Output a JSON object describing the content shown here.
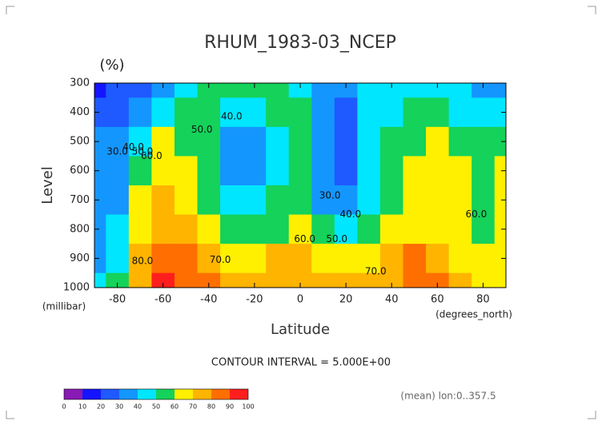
{
  "chart_data": {
    "type": "contour",
    "title": "RHUM_1983-03_NCEP",
    "unit": "(%)",
    "x_label": "Latitude",
    "x_unit": "(degrees_north)",
    "y_label": "Level",
    "y_unit": "(millibar)",
    "note": "CONTOUR INTERVAL = 5.000E+00",
    "footer": "(mean) lon:0..357.5",
    "xlim": [
      -90,
      90
    ],
    "ylim": [
      1000,
      300
    ],
    "xticks": [
      -80,
      -60,
      -40,
      -20,
      0,
      20,
      40,
      60,
      80
    ],
    "yticks": [
      300,
      400,
      500,
      600,
      700,
      800,
      900,
      1000
    ],
    "x": [
      -90,
      -80,
      -70,
      -60,
      -50,
      -40,
      -30,
      -20,
      -10,
      0,
      10,
      20,
      30,
      40,
      50,
      60,
      70,
      80,
      90
    ],
    "y": [
      300,
      400,
      500,
      600,
      700,
      800,
      900,
      1000
    ],
    "z": [
      [
        15,
        20,
        25,
        35,
        45,
        52,
        52,
        55,
        52,
        48,
        35,
        38,
        45,
        45,
        42,
        45,
        40,
        38,
        35
      ],
      [
        25,
        28,
        35,
        45,
        52,
        55,
        42,
        42,
        52,
        55,
        30,
        28,
        45,
        48,
        52,
        50,
        45,
        42,
        42
      ],
      [
        30,
        32,
        48,
        65,
        58,
        50,
        38,
        38,
        45,
        55,
        30,
        25,
        42,
        55,
        58,
        60,
        55,
        55,
        55
      ],
      [
        32,
        35,
        55,
        68,
        65,
        52,
        38,
        38,
        48,
        55,
        32,
        28,
        42,
        55,
        65,
        68,
        60,
        58,
        62
      ],
      [
        32,
        38,
        60,
        72,
        68,
        58,
        45,
        45,
        50,
        55,
        38,
        32,
        48,
        58,
        65,
        68,
        62,
        58,
        62
      ],
      [
        35,
        40,
        65,
        78,
        75,
        65,
        58,
        55,
        58,
        62,
        55,
        48,
        55,
        62,
        68,
        68,
        62,
        58,
        62
      ],
      [
        35,
        45,
        72,
        85,
        80,
        72,
        68,
        68,
        70,
        70,
        68,
        62,
        68,
        75,
        80,
        78,
        68,
        62,
        62
      ],
      [
        40,
        50,
        78,
        90,
        85,
        80,
        78,
        78,
        75,
        75,
        78,
        75,
        72,
        78,
        85,
        80,
        72,
        68,
        65
      ]
    ],
    "contour_labels": [
      {
        "value": 30,
        "label": "30.0",
        "x": -80,
        "y": 535
      },
      {
        "value": 40,
        "label": "40.0",
        "x": -73,
        "y": 520
      },
      {
        "value": 50,
        "label": "50.0",
        "x": -69,
        "y": 535
      },
      {
        "value": 60,
        "label": "60.0",
        "x": -65,
        "y": 550
      },
      {
        "value": 50,
        "label": "50.0",
        "x": -43,
        "y": 460
      },
      {
        "value": 40,
        "label": "40.0",
        "x": -30,
        "y": 415
      },
      {
        "value": 30,
        "label": "30.0",
        "x": 13,
        "y": 685
      },
      {
        "value": 40,
        "label": "40.0",
        "x": 22,
        "y": 750
      },
      {
        "value": 50,
        "label": "50.0",
        "x": 16,
        "y": 835
      },
      {
        "value": 60,
        "label": "60.0",
        "x": 2,
        "y": 835
      },
      {
        "value": 70,
        "label": "70.0",
        "x": -35,
        "y": 905
      },
      {
        "value": 80,
        "label": "80.0",
        "x": -69,
        "y": 910
      },
      {
        "value": 70,
        "label": "70.0",
        "x": 33,
        "y": 945
      },
      {
        "value": 60,
        "label": "60.0",
        "x": 77,
        "y": 750
      }
    ],
    "colorbar": {
      "levels": [
        0,
        10,
        20,
        30,
        40,
        50,
        60,
        70,
        80,
        90,
        100
      ],
      "colors": [
        "#8a1ab4",
        "#1414ff",
        "#1e5aff",
        "#1496ff",
        "#00e6ff",
        "#14d25a",
        "#fff000",
        "#ffb400",
        "#ff6e00",
        "#ff1e1e"
      ]
    }
  }
}
